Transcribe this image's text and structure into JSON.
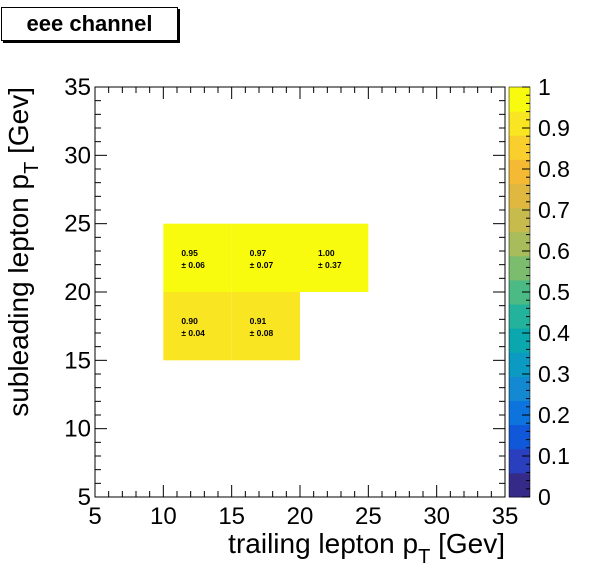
{
  "title": "eee channel",
  "chart_data": {
    "type": "heatmap",
    "xlabel": "trailing lepton p",
    "xlabel_sub": "T",
    "xlabel_unit": " [Gev]",
    "ylabel": "subleading lepton p",
    "ylabel_sub": "T",
    "ylabel_unit": " [Gev]",
    "xlim": [
      5,
      35
    ],
    "ylim": [
      5,
      35
    ],
    "x_ticks": [
      "5",
      "10",
      "15",
      "20",
      "25",
      "30",
      "35"
    ],
    "y_ticks": [
      "5",
      "10",
      "15",
      "20",
      "25",
      "30",
      "35"
    ],
    "colorbar": {
      "range": [
        0,
        1
      ],
      "ticks": [
        "0",
        "0.1",
        "0.2",
        "0.3",
        "0.4",
        "0.5",
        "0.6",
        "0.7",
        "0.8",
        "0.9",
        "1"
      ],
      "colors": [
        "#352a87",
        "#2a3fbd",
        "#1058d9",
        "#0c74dc",
        "#1389d2",
        "#0b9bc2",
        "#0aa8ae",
        "#23b29b",
        "#4cba84",
        "#7cbc6e",
        "#a8bc5c",
        "#c8bb4d",
        "#e1b83f",
        "#f5ba34",
        "#f9cf2d",
        "#f9e521",
        "#f9fb0e"
      ]
    },
    "cells": [
      {
        "x": [
          10,
          15
        ],
        "y": [
          15,
          20
        ],
        "value": 0.9,
        "label": "0.90",
        "error": "± 0.04"
      },
      {
        "x": [
          15,
          20
        ],
        "y": [
          15,
          20
        ],
        "value": 0.91,
        "label": "0.91",
        "error": "± 0.08"
      },
      {
        "x": [
          10,
          15
        ],
        "y": [
          20,
          25
        ],
        "value": 0.95,
        "label": "0.95",
        "error": "± 0.06"
      },
      {
        "x": [
          15,
          20
        ],
        "y": [
          20,
          25
        ],
        "value": 0.97,
        "label": "0.97",
        "error": "± 0.07"
      },
      {
        "x": [
          20,
          25
        ],
        "y": [
          20,
          25
        ],
        "value": 1.0,
        "label": "1.00",
        "error": "± 0.37"
      }
    ]
  }
}
